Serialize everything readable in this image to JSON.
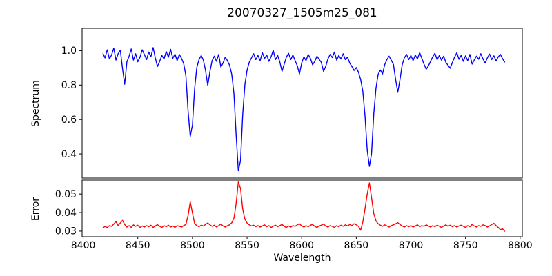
{
  "chart_data": {
    "type": "line",
    "title": "20070327_1505m25_081",
    "xlabel": "Wavelength",
    "grid": false,
    "legend": false,
    "xlim": [
      8399,
      8802
    ],
    "xticks": [
      8400,
      8450,
      8500,
      8550,
      8600,
      8650,
      8700,
      8750,
      8800
    ],
    "x": [
      8418,
      8420,
      8422,
      8424,
      8426,
      8428,
      8430,
      8432,
      8434,
      8436,
      8438,
      8440,
      8442,
      8444,
      8446,
      8448,
      8450,
      8452,
      8454,
      8456,
      8458,
      8460,
      8462,
      8464,
      8466,
      8468,
      8470,
      8472,
      8474,
      8476,
      8478,
      8480,
      8482,
      8484,
      8486,
      8488,
      8490,
      8492,
      8494,
      8496,
      8498,
      8500,
      8502,
      8504,
      8506,
      8508,
      8510,
      8512,
      8514,
      8516,
      8518,
      8520,
      8522,
      8524,
      8526,
      8528,
      8530,
      8532,
      8534,
      8536,
      8538,
      8540,
      8542,
      8544,
      8546,
      8548,
      8550,
      8552,
      8554,
      8556,
      8558,
      8560,
      8562,
      8564,
      8566,
      8568,
      8570,
      8572,
      8574,
      8576,
      8578,
      8580,
      8582,
      8584,
      8586,
      8588,
      8590,
      8592,
      8594,
      8596,
      8598,
      8600,
      8602,
      8604,
      8606,
      8608,
      8610,
      8612,
      8614,
      8616,
      8618,
      8620,
      8622,
      8624,
      8626,
      8628,
      8630,
      8632,
      8634,
      8636,
      8638,
      8640,
      8642,
      8644,
      8646,
      8648,
      8650,
      8652,
      8654,
      8656,
      8658,
      8660,
      8662,
      8664,
      8666,
      8668,
      8670,
      8672,
      8674,
      8676,
      8678,
      8680,
      8682,
      8684,
      8686,
      8688,
      8690,
      8692,
      8694,
      8696,
      8698,
      8700,
      8702,
      8704,
      8706,
      8708,
      8710,
      8712,
      8714,
      8716,
      8718,
      8720,
      8722,
      8724,
      8726,
      8728,
      8730,
      8732,
      8734,
      8736,
      8738,
      8740,
      8742,
      8744,
      8746,
      8748,
      8750,
      8752,
      8754,
      8756,
      8758,
      8760,
      8762,
      8764,
      8766,
      8768,
      8770,
      8772,
      8774,
      8776,
      8778,
      8780,
      8782,
      8784,
      8786
    ],
    "panels": [
      {
        "name": "spectrum",
        "ylabel": "Spectrum",
        "color": "#0000ff",
        "ylim": [
          0.26,
          1.13
        ],
        "yticks": [
          "0.4",
          "0.6",
          "0.8",
          "1.0"
        ],
        "values": [
          0.985,
          0.958,
          1.005,
          0.952,
          0.975,
          1.015,
          0.945,
          0.982,
          1.002,
          0.895,
          0.805,
          0.935,
          0.968,
          1.01,
          0.945,
          0.982,
          0.935,
          0.962,
          1.005,
          0.978,
          0.948,
          0.992,
          0.965,
          1.018,
          0.958,
          0.908,
          0.938,
          0.972,
          0.952,
          0.995,
          0.962,
          1.008,
          0.955,
          0.98,
          0.942,
          0.978,
          0.955,
          0.925,
          0.855,
          0.648,
          0.502,
          0.568,
          0.782,
          0.902,
          0.948,
          0.972,
          0.945,
          0.885,
          0.798,
          0.878,
          0.942,
          0.968,
          0.938,
          0.978,
          0.905,
          0.928,
          0.962,
          0.942,
          0.915,
          0.862,
          0.748,
          0.512,
          0.302,
          0.362,
          0.625,
          0.802,
          0.888,
          0.932,
          0.958,
          0.982,
          0.948,
          0.972,
          0.942,
          0.988,
          0.955,
          0.975,
          0.938,
          0.965,
          1.002,
          0.948,
          0.972,
          0.935,
          0.88,
          0.922,
          0.962,
          0.985,
          0.948,
          0.975,
          0.942,
          0.912,
          0.865,
          0.928,
          0.965,
          0.942,
          0.978,
          0.955,
          0.918,
          0.938,
          0.968,
          0.95,
          0.932,
          0.88,
          0.908,
          0.952,
          0.978,
          0.96,
          0.992,
          0.945,
          0.972,
          0.952,
          0.982,
          0.948,
          0.962,
          0.928,
          0.908,
          0.885,
          0.902,
          0.875,
          0.832,
          0.762,
          0.622,
          0.422,
          0.328,
          0.402,
          0.632,
          0.782,
          0.862,
          0.888,
          0.865,
          0.918,
          0.948,
          0.968,
          0.945,
          0.92,
          0.832,
          0.758,
          0.832,
          0.918,
          0.958,
          0.978,
          0.948,
          0.972,
          0.942,
          0.975,
          0.952,
          0.988,
          0.955,
          0.922,
          0.892,
          0.912,
          0.938,
          0.965,
          0.985,
          0.948,
          0.972,
          0.945,
          0.968,
          0.932,
          0.915,
          0.898,
          0.932,
          0.962,
          0.988,
          0.95,
          0.972,
          0.938,
          0.97,
          0.942,
          0.978,
          0.922,
          0.945,
          0.968,
          0.95,
          0.982,
          0.952,
          0.928,
          0.958,
          0.98,
          0.948,
          0.97,
          0.94,
          0.965,
          0.978,
          0.952,
          0.932
        ]
      },
      {
        "name": "error",
        "ylabel": "Error",
        "color": "#ff0000",
        "ylim": [
          0.027,
          0.0575
        ],
        "yticks": [
          "0.03",
          "0.04",
          "0.05"
        ],
        "values": [
          0.0318,
          0.0325,
          0.032,
          0.033,
          0.0326,
          0.0338,
          0.0352,
          0.033,
          0.0344,
          0.0358,
          0.0336,
          0.0322,
          0.033,
          0.032,
          0.0334,
          0.0326,
          0.0332,
          0.032,
          0.0328,
          0.0322,
          0.033,
          0.0324,
          0.0332,
          0.032,
          0.0328,
          0.0335,
          0.0326,
          0.032,
          0.033,
          0.0324,
          0.0332,
          0.0322,
          0.0328,
          0.032,
          0.033,
          0.0326,
          0.0322,
          0.033,
          0.0336,
          0.0385,
          0.0458,
          0.0398,
          0.034,
          0.033,
          0.0324,
          0.0332,
          0.0328,
          0.0336,
          0.0344,
          0.0334,
          0.0326,
          0.0332,
          0.0322,
          0.033,
          0.0338,
          0.0328,
          0.0322,
          0.033,
          0.0334,
          0.0345,
          0.037,
          0.0448,
          0.0565,
          0.053,
          0.042,
          0.0365,
          0.0344,
          0.0334,
          0.0328,
          0.0332,
          0.0324,
          0.033,
          0.0322,
          0.0328,
          0.0334,
          0.0324,
          0.033,
          0.032,
          0.0326,
          0.0332,
          0.0324,
          0.033,
          0.0336,
          0.0326,
          0.032,
          0.0328,
          0.0322,
          0.033,
          0.0326,
          0.0334,
          0.034,
          0.0328,
          0.0322,
          0.033,
          0.0324,
          0.0332,
          0.0336,
          0.0326,
          0.032,
          0.0328,
          0.0332,
          0.0338,
          0.0328,
          0.0322,
          0.033,
          0.0326,
          0.032,
          0.033,
          0.0324,
          0.0332,
          0.0326,
          0.0334,
          0.0328,
          0.0336,
          0.033,
          0.034,
          0.0334,
          0.0326,
          0.0305,
          0.035,
          0.042,
          0.05,
          0.056,
          0.048,
          0.0395,
          0.0355,
          0.034,
          0.0332,
          0.0326,
          0.0334,
          0.0328,
          0.0322,
          0.033,
          0.0334,
          0.034,
          0.0346,
          0.0336,
          0.0328,
          0.0322,
          0.033,
          0.0324,
          0.033,
          0.0322,
          0.0328,
          0.0334,
          0.0324,
          0.033,
          0.0326,
          0.0334,
          0.0328,
          0.0322,
          0.033,
          0.0324,
          0.0332,
          0.0326,
          0.032,
          0.0328,
          0.0334,
          0.0326,
          0.0332,
          0.0324,
          0.033,
          0.0322,
          0.0328,
          0.0332,
          0.0326,
          0.032,
          0.033,
          0.0324,
          0.0336,
          0.0328,
          0.0322,
          0.033,
          0.0326,
          0.0334,
          0.033,
          0.0322,
          0.0328,
          0.0336,
          0.0342,
          0.033,
          0.032,
          0.0308,
          0.0312,
          0.0298
        ]
      }
    ]
  }
}
